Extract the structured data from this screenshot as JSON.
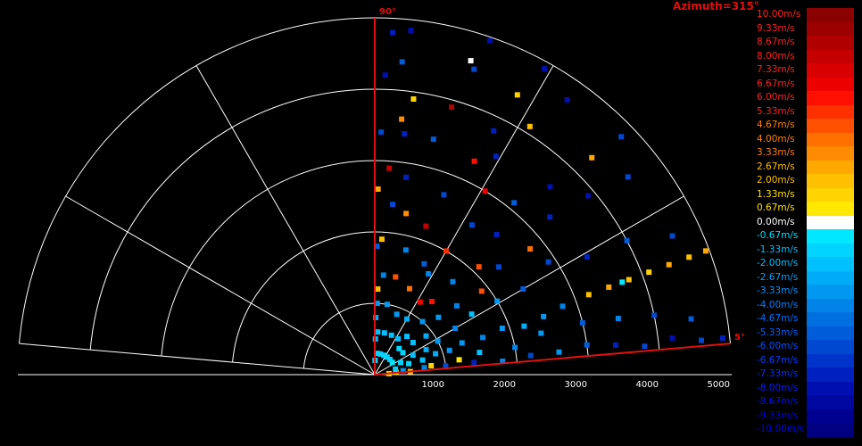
{
  "chart_data": {
    "type": "polar-scatter",
    "title": "Azimuth=315°",
    "sector_start_label": "5°",
    "sector_end_label": "90°",
    "sector_angles_deg": [
      5,
      90
    ],
    "range_ticks": [
      "1000",
      "2000",
      "3000",
      "4000",
      "5000"
    ],
    "range_max": 5000,
    "ring_count": 5,
    "spoke_angles_deg": [
      5,
      30,
      60,
      90,
      120,
      150,
      175
    ],
    "colorbar": {
      "unit": "m/s",
      "labels": [
        "10.00m/s",
        "9.33m/s",
        "8.67m/s",
        "8.00m/s",
        "7.33m/s",
        "6.67m/s",
        "6.00m/s",
        "5.33m/s",
        "4.67m/s",
        "4.00m/s",
        "3.33m/s",
        "2.67m/s",
        "2.00m/s",
        "1.33m/s",
        "0.67m/s",
        "0.00m/s",
        "-0.67m/s",
        "-1.33m/s",
        "-2.00m/s",
        "-2.67m/s",
        "-3.33m/s",
        "-4.00m/s",
        "-4.67m/s",
        "-5.33m/s",
        "-6.00m/s",
        "-6.67m/s",
        "-7.33m/s",
        "-8.00m/s",
        "-8.67m/s",
        "-9.33m/s",
        "-10.00m/s"
      ],
      "colors": [
        "#8b0000",
        "#9c0000",
        "#b00000",
        "#c40000",
        "#d80000",
        "#ec0000",
        "#ff1000",
        "#ff3000",
        "#ff5000",
        "#ff7000",
        "#ff8c00",
        "#ffa800",
        "#ffc000",
        "#ffd400",
        "#ffe800",
        "#ffffff",
        "#00e8ff",
        "#00d4ff",
        "#00c0ff",
        "#00acf8",
        "#0098f0",
        "#0084e8",
        "#0070e0",
        "#005cd8",
        "#0048d0",
        "#0034c8",
        "#0020c0",
        "#0010b0",
        "#0008a0",
        "#000090",
        "#000080"
      ],
      "label_colors": [
        "#ff2020",
        "#ff2020",
        "#ff2020",
        "#ff2020",
        "#ff2020",
        "#ff2020",
        "#ff2020",
        "#ff2020",
        "#ff8000",
        "#ff8000",
        "#ff8000",
        "#ffc000",
        "#ffc000",
        "#ffe000",
        "#ffe000",
        "#ffffff",
        "#00e0ff",
        "#00c0ff",
        "#00c0ff",
        "#00a0ff",
        "#0090ff",
        "#0080ff",
        "#0070ff",
        "#0060ff",
        "#0050ff",
        "#0040ff",
        "#0030ff",
        "#0020ff",
        "#0010ff",
        "#0000ff",
        "#0000ff"
      ]
    },
    "series": [
      {
        "values": [
          [
            400,
            8,
            -3
          ],
          [
            700,
            8,
            -4
          ],
          [
            1000,
            7,
            -6
          ],
          [
            1400,
            7,
            -7
          ],
          [
            1800,
            6,
            -4
          ],
          [
            2200,
            7,
            -6
          ],
          [
            2600,
            7,
            -3
          ],
          [
            3000,
            8,
            -5
          ],
          [
            3400,
            7,
            -7
          ],
          [
            3800,
            6,
            -6
          ],
          [
            4200,
            7,
            -8
          ],
          [
            4600,
            6,
            -6
          ],
          [
            4900,
            6,
            -7
          ],
          [
            200,
            4,
            1.3
          ],
          [
            300,
            6,
            1
          ],
          [
            500,
            5,
            2
          ],
          [
            800,
            9,
            1.3
          ],
          [
            1200,
            10,
            0.7
          ],
          [
            1500,
            12,
            -2
          ],
          [
            2000,
            11,
            -4
          ],
          [
            2400,
            14,
            -3
          ],
          [
            3000,
            14,
            -5
          ],
          [
            3500,
            13,
            -4
          ],
          [
            4000,
            12,
            -6
          ],
          [
            4500,
            10,
            -5
          ],
          [
            300,
            15,
            -1
          ],
          [
            500,
            18,
            -1.3
          ],
          [
            700,
            17,
            -2
          ],
          [
            900,
            19,
            -2.7
          ],
          [
            1100,
            18,
            -3
          ],
          [
            1300,
            20,
            -3.3
          ],
          [
            1600,
            19,
            -4
          ],
          [
            1900,
            20,
            -3
          ],
          [
            2200,
            18,
            -2.7
          ],
          [
            2500,
            19,
            -3.3
          ],
          [
            2800,
            20,
            -4
          ],
          [
            3200,
            20.5,
            2
          ],
          [
            3500,
            20.5,
            2.7
          ],
          [
            3800,
            20.5,
            2
          ],
          [
            4100,
            20.5,
            1.3
          ],
          [
            4400,
            20.5,
            2.7
          ],
          [
            4700,
            20.5,
            2
          ],
          [
            4950,
            20.5,
            2.7
          ],
          [
            3700,
            20.5,
            -0.7
          ],
          [
            400,
            25,
            -1.3
          ],
          [
            600,
            27,
            -2
          ],
          [
            800,
            26,
            -2.7
          ],
          [
            1000,
            28,
            -3.3
          ],
          [
            1300,
            30,
            -4
          ],
          [
            1600,
            32,
            -2
          ],
          [
            2000,
            31,
            -3
          ],
          [
            2400,
            30,
            -5
          ],
          [
            2900,
            33,
            -6
          ],
          [
            3400,
            29,
            -7
          ],
          [
            4000,
            28,
            -5
          ],
          [
            4600,
            25,
            -6
          ],
          [
            300,
            35,
            -0.7
          ],
          [
            500,
            38,
            -1.3
          ],
          [
            700,
            40,
            -2
          ],
          [
            900,
            37,
            -2.7
          ],
          [
            1200,
            42,
            -3.3
          ],
          [
            1500,
            40,
            -4
          ],
          [
            1900,
            38,
            5
          ],
          [
            2300,
            41,
            -6
          ],
          [
            2800,
            39,
            4
          ],
          [
            3300,
            42,
            -7
          ],
          [
            3900,
            40,
            -8
          ],
          [
            4500,
            38,
            -6
          ],
          [
            300,
            45,
            -1
          ],
          [
            500,
            47,
            -1.5
          ],
          [
            700,
            50,
            -2
          ],
          [
            1000,
            48,
            -3
          ],
          [
            1300,
            52,
            6
          ],
          [
            1700,
            50,
            -4
          ],
          [
            2100,
            46,
            4.7
          ],
          [
            2600,
            49,
            -7
          ],
          [
            3100,
            51,
            -5
          ],
          [
            3600,
            47,
            -8
          ],
          [
            4300,
            45,
            2.7
          ],
          [
            4800,
            44,
            -6
          ],
          [
            300,
            55,
            -1.3
          ],
          [
            600,
            57,
            -2
          ],
          [
            900,
            60,
            -2.7
          ],
          [
            1200,
            58,
            7
          ],
          [
            1600,
            62,
            -4
          ],
          [
            2000,
            60,
            5.3
          ],
          [
            2500,
            57,
            -6
          ],
          [
            3000,
            59,
            6.7
          ],
          [
            3500,
            61,
            -7
          ],
          [
            4100,
            58,
            2
          ],
          [
            4700,
            55,
            -8
          ],
          [
            300,
            65,
            -1
          ],
          [
            600,
            67,
            -2
          ],
          [
            900,
            70,
            -3
          ],
          [
            1300,
            68,
            4
          ],
          [
            1700,
            66,
            -5
          ],
          [
            2200,
            71,
            8
          ],
          [
            2700,
            69,
            -6
          ],
          [
            3300,
            65,
            6
          ],
          [
            3800,
            64,
            -7
          ],
          [
            4400,
            63,
            1.3
          ],
          [
            4900,
            61,
            -8
          ],
          [
            300,
            75,
            -1.3
          ],
          [
            600,
            77,
            -2
          ],
          [
            1000,
            80,
            -3
          ],
          [
            1400,
            78,
            5
          ],
          [
            1800,
            76,
            -4
          ],
          [
            2300,
            79,
            3.3
          ],
          [
            2800,
            81,
            -7
          ],
          [
            3400,
            76,
            -5
          ],
          [
            3900,
            74,
            9
          ],
          [
            4500,
            72,
            -6
          ],
          [
            4950,
            71,
            -8
          ],
          [
            300,
            84,
            -1.5
          ],
          [
            600,
            86,
            -2
          ],
          [
            1000,
            88,
            -3
          ],
          [
            1400,
            85,
            -4
          ],
          [
            1900,
            87,
            2
          ],
          [
            2400,
            84,
            -6
          ],
          [
            2900,
            86,
            8
          ],
          [
            3400,
            83,
            -7
          ],
          [
            3900,
            82,
            1.3
          ],
          [
            4400,
            85,
            -5
          ],
          [
            4850,
            84,
            -8
          ],
          [
            200,
            89,
            -1
          ],
          [
            500,
            89,
            -2
          ],
          [
            800,
            89,
            -2.7
          ],
          [
            1200,
            88,
            2
          ],
          [
            1800,
            89,
            -5
          ],
          [
            2600,
            89,
            2.7
          ],
          [
            3400,
            88.5,
            -6
          ],
          [
            4200,
            88,
            -8
          ],
          [
            4800,
            87,
            -7
          ],
          [
            4600,
            73,
            0
          ],
          [
            3600,
            84,
            3.3
          ]
        ]
      }
    ]
  }
}
